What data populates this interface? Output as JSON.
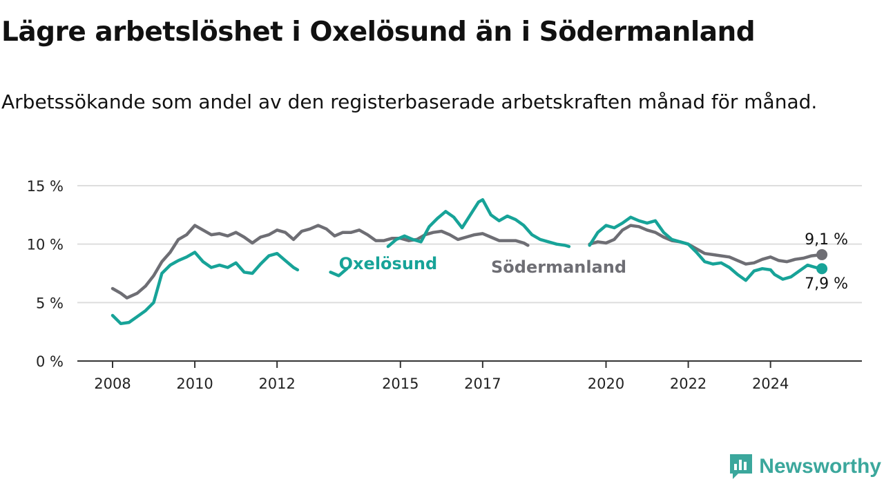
{
  "title": "Lägre arbetslöshet i Oxelösund än i Södermanland",
  "subtitle": "Arbetssökande som andel av den registerbaserade arbetskraften månad för månad.",
  "brand": {
    "name": "Newsworthy",
    "color": "#3ba79c"
  },
  "colors": {
    "oxelosund": "#17a398",
    "sodermanland": "#6e6e74",
    "grid": "#dddddd",
    "axis": "#333333"
  },
  "chart_data": {
    "type": "line",
    "ylim": [
      0,
      15
    ],
    "y_ticks": [
      0,
      5,
      10,
      15
    ],
    "y_tick_labels": [
      "0 %",
      "5 %",
      "10 %",
      "15 %"
    ],
    "xlim": [
      2008.0,
      2025.45
    ],
    "x_ticks": [
      2008,
      2010,
      2012,
      2015,
      2017,
      2020,
      2022,
      2024
    ],
    "x_tick_labels": [
      "2008",
      "2010",
      "2012",
      "2015",
      "2017",
      "2020",
      "2022",
      "2024"
    ],
    "grid": "horizontal",
    "series": [
      {
        "name": "Oxelösund",
        "color": "#17a398",
        "end_label": "7,9 %",
        "points": [
          [
            2008.0,
            3.9
          ],
          [
            2008.2,
            3.2
          ],
          [
            2008.4,
            3.3
          ],
          [
            2008.6,
            3.8
          ],
          [
            2008.8,
            4.3
          ],
          [
            2009.0,
            5.0
          ],
          [
            2009.2,
            7.5
          ],
          [
            2009.4,
            8.2
          ],
          [
            2009.6,
            8.6
          ],
          [
            2009.8,
            8.9
          ],
          [
            2010.0,
            9.3
          ],
          [
            2010.2,
            8.5
          ],
          [
            2010.4,
            8.0
          ],
          [
            2010.6,
            8.2
          ],
          [
            2010.8,
            8.0
          ],
          [
            2011.0,
            8.4
          ],
          [
            2011.2,
            7.6
          ],
          [
            2011.4,
            7.5
          ],
          [
            2011.6,
            8.3
          ],
          [
            2011.8,
            9.0
          ],
          [
            2012.0,
            9.2
          ],
          [
            2012.2,
            8.6
          ],
          [
            2012.4,
            8.0
          ],
          [
            2012.5,
            7.8
          ],
          [
            null,
            null
          ],
          [
            2013.3,
            7.6
          ],
          [
            2013.5,
            7.3
          ],
          [
            2013.7,
            7.9
          ],
          [
            null,
            null
          ],
          [
            2014.7,
            9.8
          ],
          [
            2014.9,
            10.4
          ],
          [
            2015.1,
            10.7
          ],
          [
            2015.3,
            10.4
          ],
          [
            2015.5,
            10.2
          ],
          [
            2015.7,
            11.5
          ],
          [
            2015.9,
            12.2
          ],
          [
            2016.1,
            12.8
          ],
          [
            2016.3,
            12.3
          ],
          [
            2016.5,
            11.4
          ],
          [
            2016.7,
            12.5
          ],
          [
            2016.9,
            13.6
          ],
          [
            2017.0,
            13.8
          ],
          [
            2017.2,
            12.5
          ],
          [
            2017.4,
            12.0
          ],
          [
            2017.6,
            12.4
          ],
          [
            2017.8,
            12.1
          ],
          [
            2018.0,
            11.6
          ],
          [
            2018.2,
            10.8
          ],
          [
            2018.4,
            10.4
          ],
          [
            2018.6,
            10.2
          ],
          [
            2018.8,
            10.0
          ],
          [
            2019.0,
            9.9
          ],
          [
            2019.1,
            9.8
          ],
          [
            null,
            null
          ],
          [
            2019.6,
            9.9
          ],
          [
            2019.8,
            11.0
          ],
          [
            2020.0,
            11.6
          ],
          [
            2020.2,
            11.4
          ],
          [
            2020.4,
            11.8
          ],
          [
            2020.6,
            12.3
          ],
          [
            2020.8,
            12.0
          ],
          [
            2021.0,
            11.8
          ],
          [
            2021.2,
            12.0
          ],
          [
            2021.4,
            11.0
          ],
          [
            2021.6,
            10.4
          ],
          [
            2021.8,
            10.2
          ],
          [
            2022.0,
            10.0
          ],
          [
            2022.2,
            9.3
          ],
          [
            2022.4,
            8.5
          ],
          [
            2022.6,
            8.3
          ],
          [
            2022.8,
            8.4
          ],
          [
            2023.0,
            8.0
          ],
          [
            2023.2,
            7.4
          ],
          [
            2023.4,
            6.9
          ],
          [
            2023.6,
            7.7
          ],
          [
            2023.8,
            7.9
          ],
          [
            2024.0,
            7.8
          ],
          [
            2024.1,
            7.4
          ],
          [
            2024.3,
            7.0
          ],
          [
            2024.5,
            7.2
          ],
          [
            2024.7,
            7.7
          ],
          [
            2024.9,
            8.2
          ],
          [
            2025.1,
            8.0
          ],
          [
            2025.25,
            7.9
          ]
        ]
      },
      {
        "name": "Södermanland",
        "color": "#6e6e74",
        "end_label": "9,1 %",
        "points": [
          [
            2008.0,
            6.2
          ],
          [
            2008.2,
            5.8
          ],
          [
            2008.35,
            5.4
          ],
          [
            2008.6,
            5.8
          ],
          [
            2008.8,
            6.4
          ],
          [
            2009.0,
            7.3
          ],
          [
            2009.2,
            8.5
          ],
          [
            2009.4,
            9.3
          ],
          [
            2009.6,
            10.4
          ],
          [
            2009.8,
            10.8
          ],
          [
            2010.0,
            11.6
          ],
          [
            2010.2,
            11.2
          ],
          [
            2010.4,
            10.8
          ],
          [
            2010.6,
            10.9
          ],
          [
            2010.8,
            10.7
          ],
          [
            2011.0,
            11.0
          ],
          [
            2011.2,
            10.6
          ],
          [
            2011.4,
            10.1
          ],
          [
            2011.6,
            10.6
          ],
          [
            2011.8,
            10.8
          ],
          [
            2012.0,
            11.2
          ],
          [
            2012.2,
            11.0
          ],
          [
            2012.4,
            10.4
          ],
          [
            2012.6,
            11.1
          ],
          [
            2012.8,
            11.3
          ],
          [
            2013.0,
            11.6
          ],
          [
            2013.2,
            11.3
          ],
          [
            2013.4,
            10.7
          ],
          [
            2013.6,
            11.0
          ],
          [
            2013.8,
            11.0
          ],
          [
            2014.0,
            11.2
          ],
          [
            2014.2,
            10.8
          ],
          [
            2014.4,
            10.3
          ],
          [
            2014.6,
            10.3
          ],
          [
            2014.8,
            10.5
          ],
          [
            2015.0,
            10.5
          ],
          [
            2015.2,
            10.3
          ],
          [
            2015.4,
            10.4
          ],
          [
            2015.6,
            10.8
          ],
          [
            2015.8,
            11.0
          ],
          [
            2016.0,
            11.1
          ],
          [
            2016.2,
            10.8
          ],
          [
            2016.4,
            10.4
          ],
          [
            2016.6,
            10.6
          ],
          [
            2016.8,
            10.8
          ],
          [
            2017.0,
            10.9
          ],
          [
            2017.2,
            10.6
          ],
          [
            2017.4,
            10.3
          ],
          [
            2017.6,
            10.3
          ],
          [
            2017.8,
            10.3
          ],
          [
            2018.0,
            10.1
          ],
          [
            2018.1,
            9.9
          ],
          [
            null,
            null
          ],
          [
            2019.6,
            10.0
          ],
          [
            2019.8,
            10.2
          ],
          [
            2020.0,
            10.1
          ],
          [
            2020.2,
            10.4
          ],
          [
            2020.4,
            11.2
          ],
          [
            2020.6,
            11.6
          ],
          [
            2020.8,
            11.5
          ],
          [
            2021.0,
            11.2
          ],
          [
            2021.2,
            11.0
          ],
          [
            2021.4,
            10.6
          ],
          [
            2021.6,
            10.3
          ],
          [
            2021.8,
            10.2
          ],
          [
            2022.0,
            10.0
          ],
          [
            2022.2,
            9.6
          ],
          [
            2022.4,
            9.2
          ],
          [
            2022.6,
            9.1
          ],
          [
            2022.8,
            9.0
          ],
          [
            2023.0,
            8.9
          ],
          [
            2023.2,
            8.6
          ],
          [
            2023.4,
            8.3
          ],
          [
            2023.6,
            8.4
          ],
          [
            2023.8,
            8.7
          ],
          [
            2024.0,
            8.9
          ],
          [
            2024.2,
            8.6
          ],
          [
            2024.4,
            8.5
          ],
          [
            2024.6,
            8.7
          ],
          [
            2024.8,
            8.8
          ],
          [
            2025.0,
            9.0
          ],
          [
            2025.25,
            9.1
          ]
        ]
      }
    ],
    "annotations": [
      {
        "series": "Oxelösund",
        "text": "Oxelösund",
        "x": 2014.7,
        "y": 8.4
      },
      {
        "series": "Södermanland",
        "text": "Södermanland",
        "x": 2018.85,
        "y": 8.1
      }
    ]
  }
}
